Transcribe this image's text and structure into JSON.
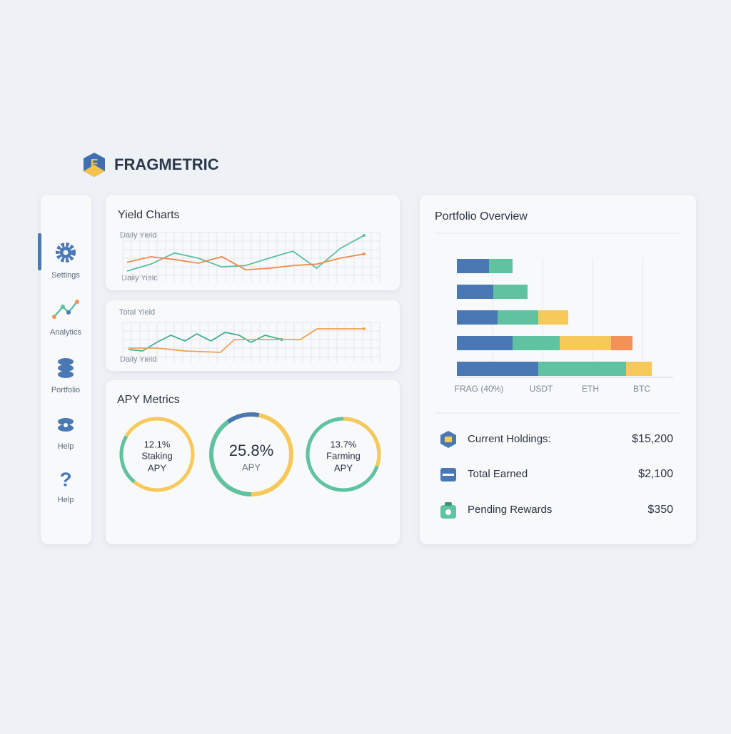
{
  "brand": "FRAGMETRIC",
  "sidebar": [
    "Settings",
    "Analytics",
    "Portfolio",
    "Help",
    "Help"
  ],
  "yield_chart": {
    "type": "line",
    "title": "Yield Charts",
    "label_top": "Daily Yield",
    "label_bottom": "Daily Yield",
    "xlim": [
      0,
      10
    ],
    "ylim": [
      0,
      10
    ],
    "series": [
      {
        "color": "#5bbf9f",
        "x": [
          0,
          1,
          2,
          3,
          4,
          5,
          6,
          7,
          8,
          9,
          10
        ],
        "values": [
          2.3,
          3.8,
          6.2,
          5.1,
          3.2,
          3.5,
          5.1,
          6.6,
          2.9,
          7.2,
          10
        ]
      },
      {
        "color": "#f08a4b",
        "x": [
          0,
          1,
          2,
          3,
          4,
          5,
          6,
          7,
          8,
          9,
          10
        ],
        "values": [
          4.2,
          5.4,
          4.8,
          4.0,
          5.4,
          2.6,
          2.9,
          3.5,
          3.8,
          5.1,
          6.0
        ]
      }
    ]
  },
  "total_yield": {
    "type": "line",
    "label_top": "Total Yield",
    "label_bottom": "Daily Yield",
    "xlim": [
      0,
      100
    ],
    "ylim": [
      0,
      10
    ],
    "series": [
      {
        "color": "#3fae95",
        "x": [
          0,
          6,
          12,
          18,
          24,
          29,
          35,
          41,
          47,
          52,
          58,
          65
        ],
        "values": [
          3,
          2.6,
          5,
          7,
          5.4,
          7.4,
          5.4,
          7.8,
          7,
          5,
          7,
          5.8
        ]
      },
      {
        "color": "#f0a050",
        "x": [
          0,
          12,
          24,
          39,
          45,
          61,
          73,
          80,
          100
        ],
        "values": [
          3.4,
          3.4,
          2.6,
          2.2,
          5.8,
          5.8,
          5.8,
          8.8,
          8.8
        ]
      }
    ]
  },
  "apy": {
    "title": "APY Metrics",
    "rings": [
      {
        "value": "12.1%",
        "label": "Staking",
        "sub": "APY"
      },
      {
        "value": "25.8%",
        "sub": "APY"
      },
      {
        "value": "13.7%",
        "label": "Farming",
        "sub": "APY"
      }
    ]
  },
  "portfolio": {
    "title": "Portfolio Overview",
    "chart": {
      "type": "stacked-hbar",
      "xlim": [
        0,
        100
      ],
      "axis_labels": [
        "FRAG (40%)",
        "USDT",
        "ETH",
        "BTC"
      ],
      "series": [
        {
          "color": "#4a78b5",
          "values": [
            15,
            17,
            19,
            26,
            38
          ]
        },
        {
          "color": "#5fc2a0",
          "values": [
            11,
            16,
            19,
            22,
            41
          ]
        },
        {
          "color": "#f7c95a",
          "values": [
            null,
            null,
            14,
            24,
            12
          ]
        },
        {
          "color": "#f39258",
          "values": [
            null,
            null,
            null,
            10,
            null
          ]
        }
      ]
    },
    "summary": [
      {
        "label": "Current Holdings:",
        "value": "$15,200"
      },
      {
        "label": "Total Earned",
        "value": "$2,100"
      },
      {
        "label": "Pending Rewards",
        "value": "$350"
      }
    ]
  }
}
